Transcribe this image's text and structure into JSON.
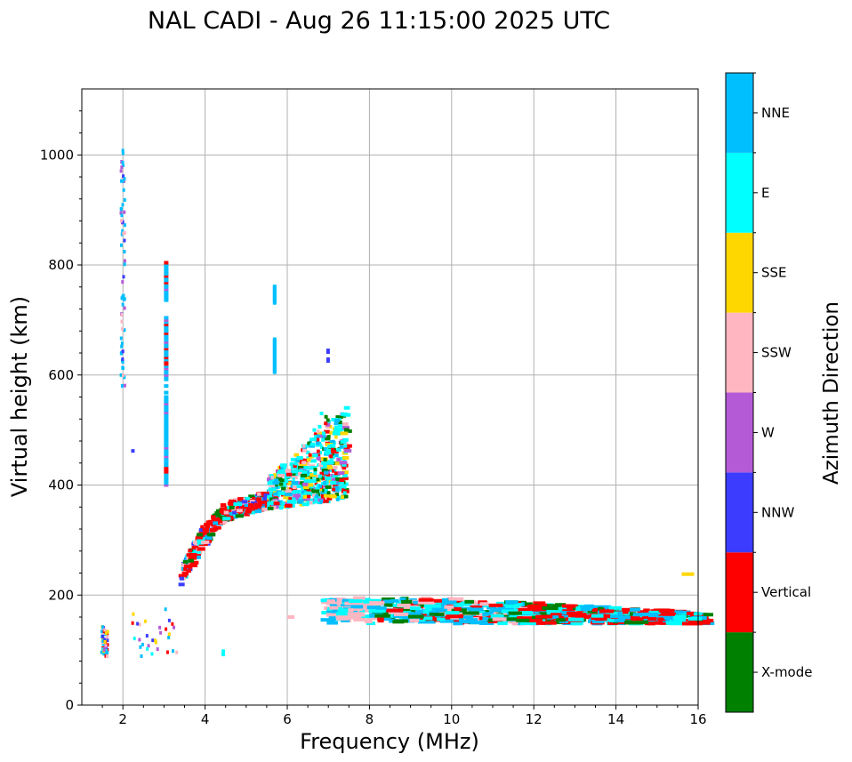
{
  "chart_data": {
    "type": "scatter",
    "title": "NAL CADI - Aug 26 11:15:00 2025 UTC",
    "xlabel": "Frequency (MHz)",
    "ylabel": "Virtual height (km)",
    "xlim": [
      1,
      16
    ],
    "ylim": [
      0,
      1120
    ],
    "xticks": [
      2,
      4,
      6,
      8,
      10,
      12,
      14,
      16
    ],
    "yticks": [
      0,
      200,
      400,
      600,
      800,
      1000
    ],
    "grid": true,
    "colorbar": {
      "label": "Azimuth Direction",
      "categories": [
        {
          "name": "X-mode",
          "color": "#008000"
        },
        {
          "name": "Vertical",
          "color": "#ff0000"
        },
        {
          "name": "NNW",
          "color": "#3c3cff"
        },
        {
          "name": "W",
          "color": "#b45ad7"
        },
        {
          "name": "SSW",
          "color": "#ffb6c1"
        },
        {
          "name": "SSE",
          "color": "#ffd700"
        },
        {
          "name": "E",
          "color": "#00ffff"
        },
        {
          "name": "NNE",
          "color": "#00bfff"
        }
      ]
    },
    "echo_regions": [
      {
        "name": "low-frequency spread column",
        "f": [
          1.95,
          2.0
        ],
        "h": [
          570,
          1015
        ],
        "direction": "NNE"
      },
      {
        "name": "3 MHz vertical streak",
        "f": [
          3.0,
          3.1
        ],
        "h": [
          400,
          805
        ],
        "direction": "NNE"
      },
      {
        "name": "5.7 MHz streak",
        "f": [
          5.65,
          5.75
        ],
        "h": [
          605,
          760
        ],
        "direction": "NNE"
      },
      {
        "name": "F-layer lower branch",
        "f": [
          3.3,
          5.6
        ],
        "h": [
          215,
          370
        ],
        "direction": "Vertical"
      },
      {
        "name": "F-layer critical region",
        "f": [
          5.6,
          7.4
        ],
        "h": [
          350,
          530
        ],
        "direction": "E"
      },
      {
        "name": "E/Es layer trace",
        "f": [
          6.8,
          16.0
        ],
        "h": [
          145,
          210
        ],
        "direction": "NNE"
      },
      {
        "name": "Low-altitude echoes",
        "f": [
          1.4,
          3.4
        ],
        "h": [
          85,
          175
        ],
        "direction": "SSE"
      }
    ]
  }
}
